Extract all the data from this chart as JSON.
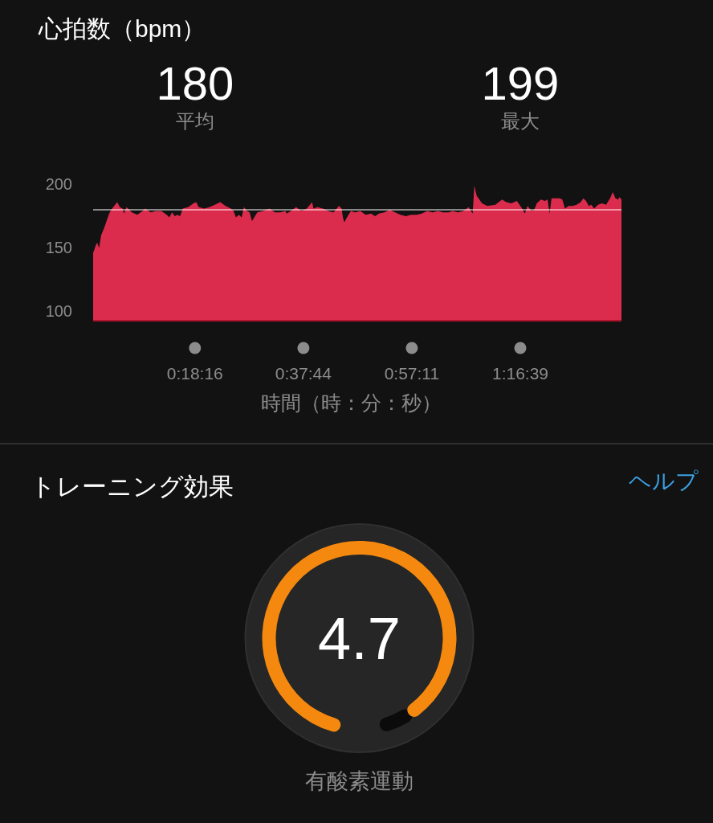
{
  "chart_data": [
    {
      "type": "area",
      "title": "心拍数（bpm）",
      "xlabel": "時間（時：分：秒）",
      "annotations": [
        "180",
        "平均",
        "199",
        "最大"
      ],
      "x": [
        0,
        0.008,
        0.012,
        0.018,
        0.024,
        0.032,
        0.04,
        0.048,
        0.052,
        0.06,
        0.072,
        0.08,
        0.088,
        0.092,
        0.1,
        0.116,
        0.132,
        0.148,
        0.156,
        0.172,
        0.188,
        0.204,
        0.22,
        0.228,
        0.236,
        0.244,
        0.252,
        0.26,
        0.268,
        0.284,
        0.3,
        0.308,
        0.316,
        0.332,
        0.348,
        0.364,
        0.38,
        0.396,
        0.412,
        0.42,
        0.427,
        0.436,
        0.444,
        0.451,
        0.46,
        0.468,
        0.475,
        0.484,
        0.491,
        0.508,
        0.527,
        0.544,
        0.559,
        0.575,
        0.579,
        0.591,
        0.607,
        0.623,
        0.639,
        0.655,
        0.659,
        0.671,
        0.687,
        0.703,
        0.719,
        0.735,
        0.743,
        0.747,
        0.751,
        0.759,
        0.771,
        0.783,
        0.799,
        0.815,
        0.831,
        0.843,
        0.855,
        0.871,
        0.887,
        0.903,
        0.919,
        0.935,
        0.951,
        0.967,
        0.983,
        0.999,
        1.015,
        1.031,
        1.047,
        1.063,
        1.075,
        1.091,
        1.107,
        1.123,
        1.135,
        1.14,
        1.147,
        1.163,
        1.179,
        1.203,
        1.223,
        1.235,
        1.251,
        1.267,
        1.283,
        1.291,
        1.299,
        1.311,
        1.319,
        1.327,
        1.339,
        1.351,
        1.359,
        1.365,
        1.371,
        1.395,
        1.403,
        1.411,
        1.422,
        1.434,
        1.446,
        1.458,
        1.466,
        1.474,
        1.482,
        1.49,
        1.498,
        1.51,
        1.522,
        1.534,
        1.546,
        1.554,
        1.562,
        1.57,
        1.574,
        1.58
      ],
      "series": [
        {
          "color": "#dc2c4d",
          "values": [
            146,
            152,
            154,
            150,
            160,
            165,
            171,
            177,
            179,
            182,
            186,
            182,
            181,
            177,
            182,
            178,
            176,
            179,
            181,
            178,
            179,
            179,
            176,
            174,
            178,
            175,
            176,
            175,
            181,
            182,
            185,
            186,
            182,
            181,
            182,
            184,
            186,
            183,
            181,
            179,
            174,
            176,
            174,
            182,
            179,
            178,
            171,
            175,
            178,
            179,
            181,
            178,
            178,
            179,
            177,
            179,
            182,
            179,
            181,
            186,
            181,
            182,
            181,
            179,
            178,
            183,
            181,
            174,
            170,
            174,
            179,
            178,
            179,
            176,
            177,
            175,
            177,
            178,
            180,
            178,
            176,
            175,
            176,
            176,
            177,
            179,
            178,
            179,
            178,
            178,
            179,
            178,
            179,
            182,
            177,
            199,
            191,
            185,
            183,
            184,
            188,
            186,
            185,
            187,
            181,
            177,
            183,
            179,
            180,
            185,
            188,
            187,
            188,
            177,
            189,
            189,
            188,
            181,
            183,
            183,
            184,
            186,
            189,
            187,
            183,
            184,
            181,
            184,
            185,
            184,
            189,
            194,
            189,
            188,
            190,
            188
          ]
        }
      ],
      "xlim": [
        0,
        1.58
      ],
      "xticks": [
        {
          "value": 0.304444,
          "label": "0:18:16"
        },
        {
          "value": 0.628889,
          "label": "0:37:44"
        },
        {
          "value": 0.953056,
          "label": "0:57:11"
        },
        {
          "value": 1.2775,
          "label": "1:16:39"
        }
      ],
      "ylim": [
        92,
        200
      ],
      "yticks": [
        100,
        150,
        200
      ],
      "ref_lines": [
        {
          "axis": "y",
          "value": 180,
          "color": "#ffffff"
        }
      ]
    },
    {
      "type": "donut",
      "title": "トレーニング効果",
      "annotations": [
        "ヘルプ",
        "4.7",
        "有酸素運動"
      ],
      "categories": [
        null,
        null
      ],
      "values": [
        94,
        6
      ],
      "colors": [
        "#f5890f",
        "#0b0b0b"
      ]
    }
  ]
}
